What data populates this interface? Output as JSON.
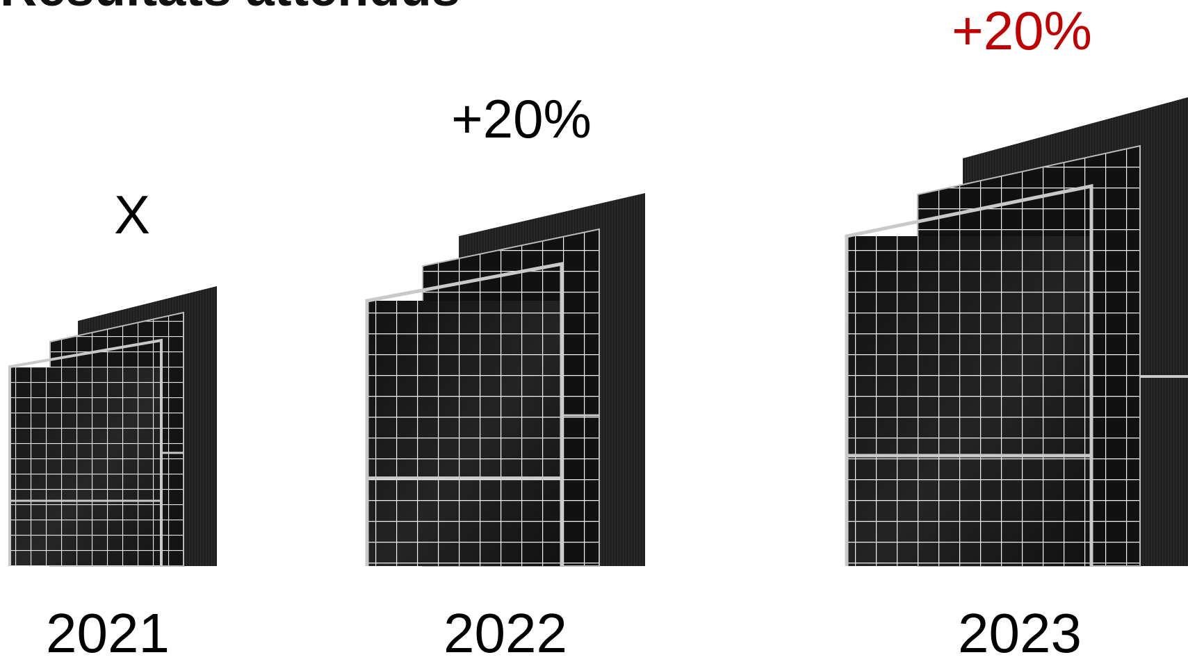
{
  "top_partial_text": "Résultats attendus",
  "columns": [
    {
      "year": "2021",
      "gain": "X",
      "gain_color": "#000000",
      "scale": 1.0
    },
    {
      "year": "2022",
      "gain": "+20%",
      "gain_color": "#000000",
      "scale": 1.2
    },
    {
      "year": "2023",
      "gain": "+20%",
      "gain_color": "#c00000",
      "scale": 1.44
    }
  ],
  "colors": {
    "panel_dark": "#111111",
    "panel_back": "#1e1e1e",
    "frame": "#c9c9c9",
    "grid_line": "#f2f2f2"
  }
}
